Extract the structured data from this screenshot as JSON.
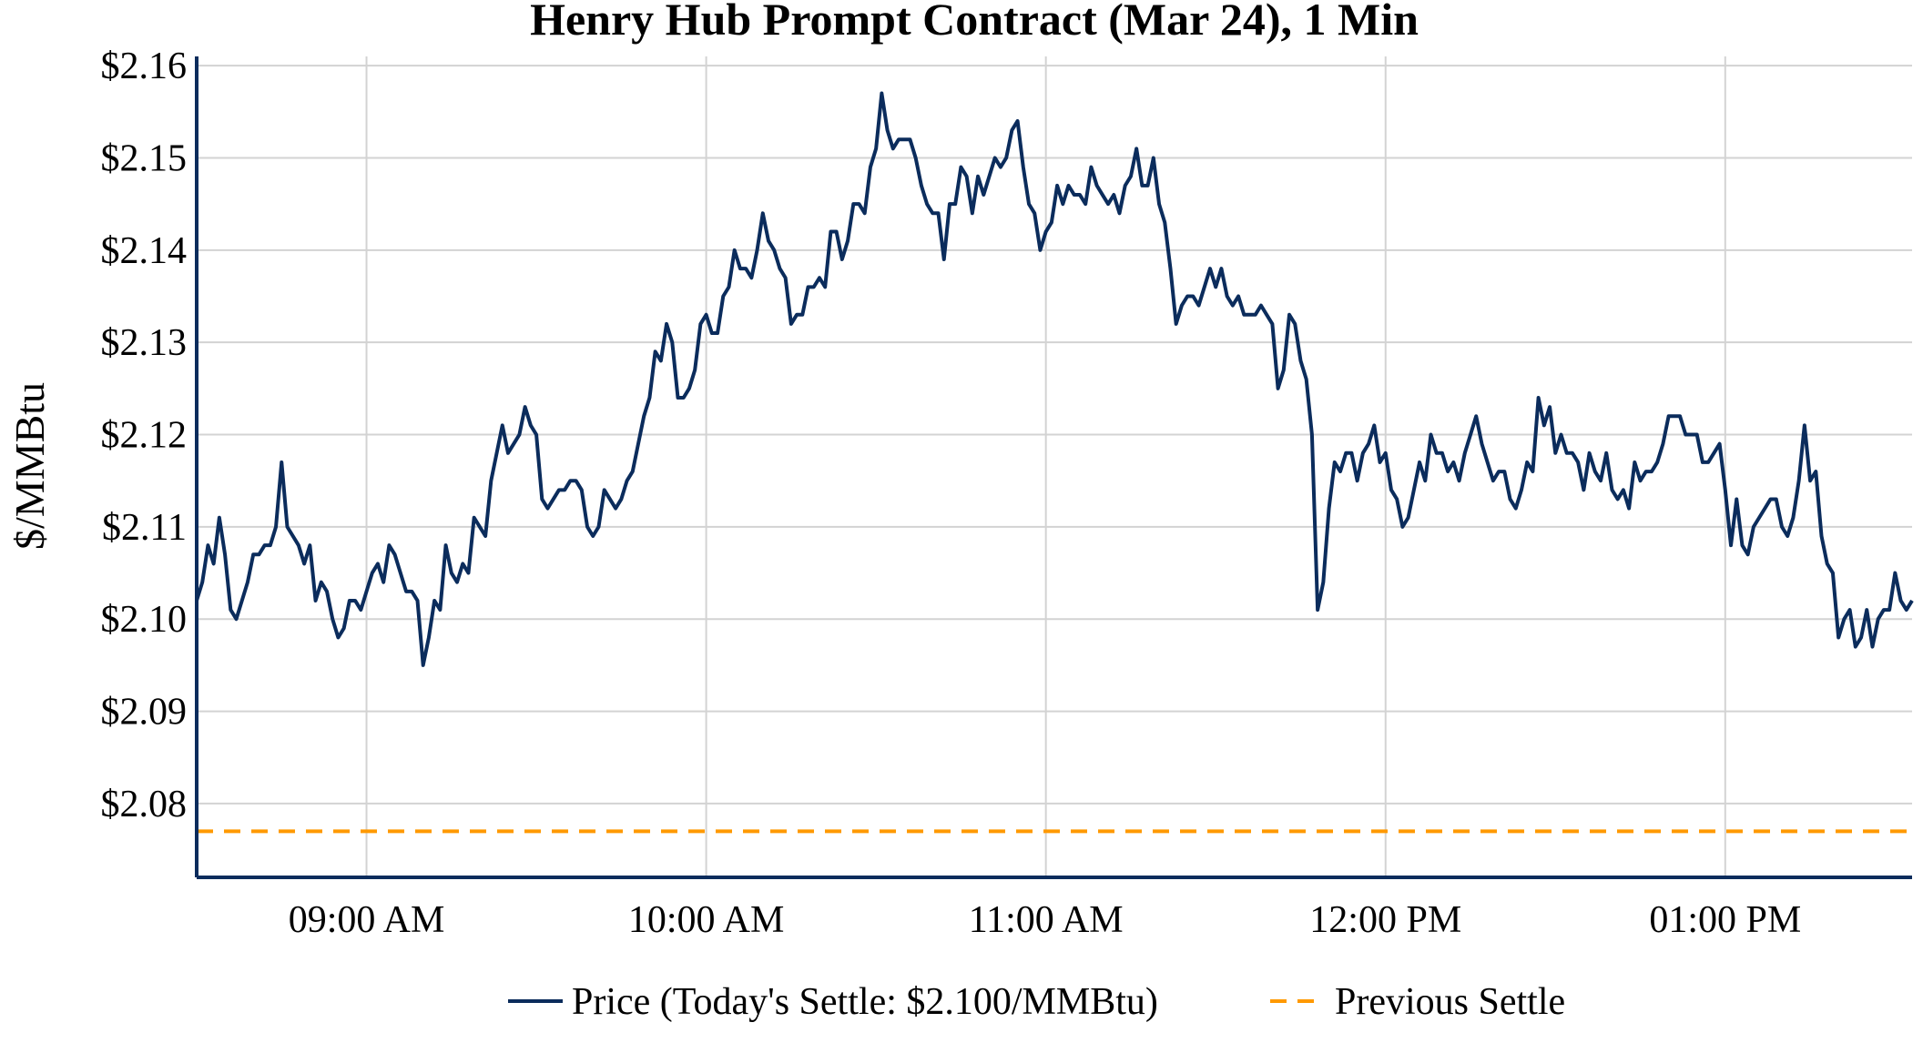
{
  "chart_data": {
    "type": "line",
    "title": "Henry Hub Prompt Contract (Mar 24), 1 Min",
    "ylabel": "$/MMBtu",
    "xlabel": "",
    "ylim": [
      2.072,
      2.161
    ],
    "yticks": [
      2.08,
      2.09,
      2.1,
      2.11,
      2.12,
      2.13,
      2.14,
      2.15,
      2.16
    ],
    "ytick_labels": [
      "$2.08",
      "$2.09",
      "$2.10",
      "$2.11",
      "$2.12",
      "$2.13",
      "$2.14",
      "$2.15",
      "$2.16"
    ],
    "xlim": [
      "08:30",
      "13:33"
    ],
    "xticks": [
      "09:00",
      "10:00",
      "11:00",
      "12:00",
      "13:00"
    ],
    "xtick_labels": [
      "09:00 AM",
      "10:00 AM",
      "11:00 AM",
      "12:00 PM",
      "01:00 PM"
    ],
    "grid": true,
    "legend_position": "bottom-center",
    "series": [
      {
        "name": "Price (Today's Settle: $2.100/MMBtu)",
        "color": "#0b2c5c",
        "style": "solid",
        "x_start": "08:30",
        "x_step_minutes": 1,
        "values": [
          2.102,
          2.104,
          2.108,
          2.106,
          2.111,
          2.107,
          2.101,
          2.1,
          2.102,
          2.104,
          2.107,
          2.107,
          2.108,
          2.108,
          2.11,
          2.117,
          2.11,
          2.109,
          2.108,
          2.106,
          2.108,
          2.102,
          2.104,
          2.103,
          2.1,
          2.098,
          2.099,
          2.102,
          2.102,
          2.101,
          2.103,
          2.105,
          2.106,
          2.104,
          2.108,
          2.107,
          2.105,
          2.103,
          2.103,
          2.102,
          2.095,
          2.098,
          2.102,
          2.101,
          2.108,
          2.105,
          2.104,
          2.106,
          2.105,
          2.111,
          2.11,
          2.109,
          2.115,
          2.118,
          2.121,
          2.118,
          2.119,
          2.12,
          2.123,
          2.121,
          2.12,
          2.113,
          2.112,
          2.113,
          2.114,
          2.114,
          2.115,
          2.115,
          2.114,
          2.11,
          2.109,
          2.11,
          2.114,
          2.113,
          2.112,
          2.113,
          2.115,
          2.116,
          2.119,
          2.122,
          2.124,
          2.129,
          2.128,
          2.132,
          2.13,
          2.124,
          2.124,
          2.125,
          2.127,
          2.132,
          2.133,
          2.131,
          2.131,
          2.135,
          2.136,
          2.14,
          2.138,
          2.138,
          2.137,
          2.14,
          2.144,
          2.141,
          2.14,
          2.138,
          2.137,
          2.132,
          2.133,
          2.133,
          2.136,
          2.136,
          2.137,
          2.136,
          2.142,
          2.142,
          2.139,
          2.141,
          2.145,
          2.145,
          2.144,
          2.149,
          2.151,
          2.157,
          2.153,
          2.151,
          2.152,
          2.152,
          2.152,
          2.15,
          2.147,
          2.145,
          2.144,
          2.144,
          2.139,
          2.145,
          2.145,
          2.149,
          2.148,
          2.144,
          2.148,
          2.146,
          2.148,
          2.15,
          2.149,
          2.15,
          2.153,
          2.154,
          2.149,
          2.145,
          2.144,
          2.14,
          2.142,
          2.143,
          2.147,
          2.145,
          2.147,
          2.146,
          2.146,
          2.145,
          2.149,
          2.147,
          2.146,
          2.145,
          2.146,
          2.144,
          2.147,
          2.148,
          2.151,
          2.147,
          2.147,
          2.15,
          2.145,
          2.143,
          2.138,
          2.132,
          2.134,
          2.135,
          2.135,
          2.134,
          2.136,
          2.138,
          2.136,
          2.138,
          2.135,
          2.134,
          2.135,
          2.133,
          2.133,
          2.133,
          2.134,
          2.133,
          2.132,
          2.125,
          2.127,
          2.133,
          2.132,
          2.128,
          2.126,
          2.12,
          2.101,
          2.104,
          2.112,
          2.117,
          2.116,
          2.118,
          2.118,
          2.115,
          2.118,
          2.119,
          2.121,
          2.117,
          2.118,
          2.114,
          2.113,
          2.11,
          2.111,
          2.114,
          2.117,
          2.115,
          2.12,
          2.118,
          2.118,
          2.116,
          2.117,
          2.115,
          2.118,
          2.12,
          2.122,
          2.119,
          2.117,
          2.115,
          2.116,
          2.116,
          2.113,
          2.112,
          2.114,
          2.117,
          2.116,
          2.124,
          2.121,
          2.123,
          2.118,
          2.12,
          2.118,
          2.118,
          2.117,
          2.114,
          2.118,
          2.116,
          2.115,
          2.118,
          2.114,
          2.113,
          2.114,
          2.112,
          2.117,
          2.115,
          2.116,
          2.116,
          2.117,
          2.119,
          2.122,
          2.122,
          2.122,
          2.12,
          2.12,
          2.12,
          2.117,
          2.117,
          2.118,
          2.119,
          2.114,
          2.108,
          2.113,
          2.108,
          2.107,
          2.11,
          2.111,
          2.112,
          2.113,
          2.113,
          2.11,
          2.109,
          2.111,
          2.115,
          2.121,
          2.115,
          2.116,
          2.109,
          2.106,
          2.105,
          2.098,
          2.1,
          2.101,
          2.097,
          2.098,
          2.101,
          2.097,
          2.1,
          2.101,
          2.101,
          2.105,
          2.102,
          2.101,
          2.102
        ]
      },
      {
        "name": "Previous Settle",
        "color": "#ff9900",
        "style": "dashed",
        "value": 2.077
      }
    ]
  }
}
